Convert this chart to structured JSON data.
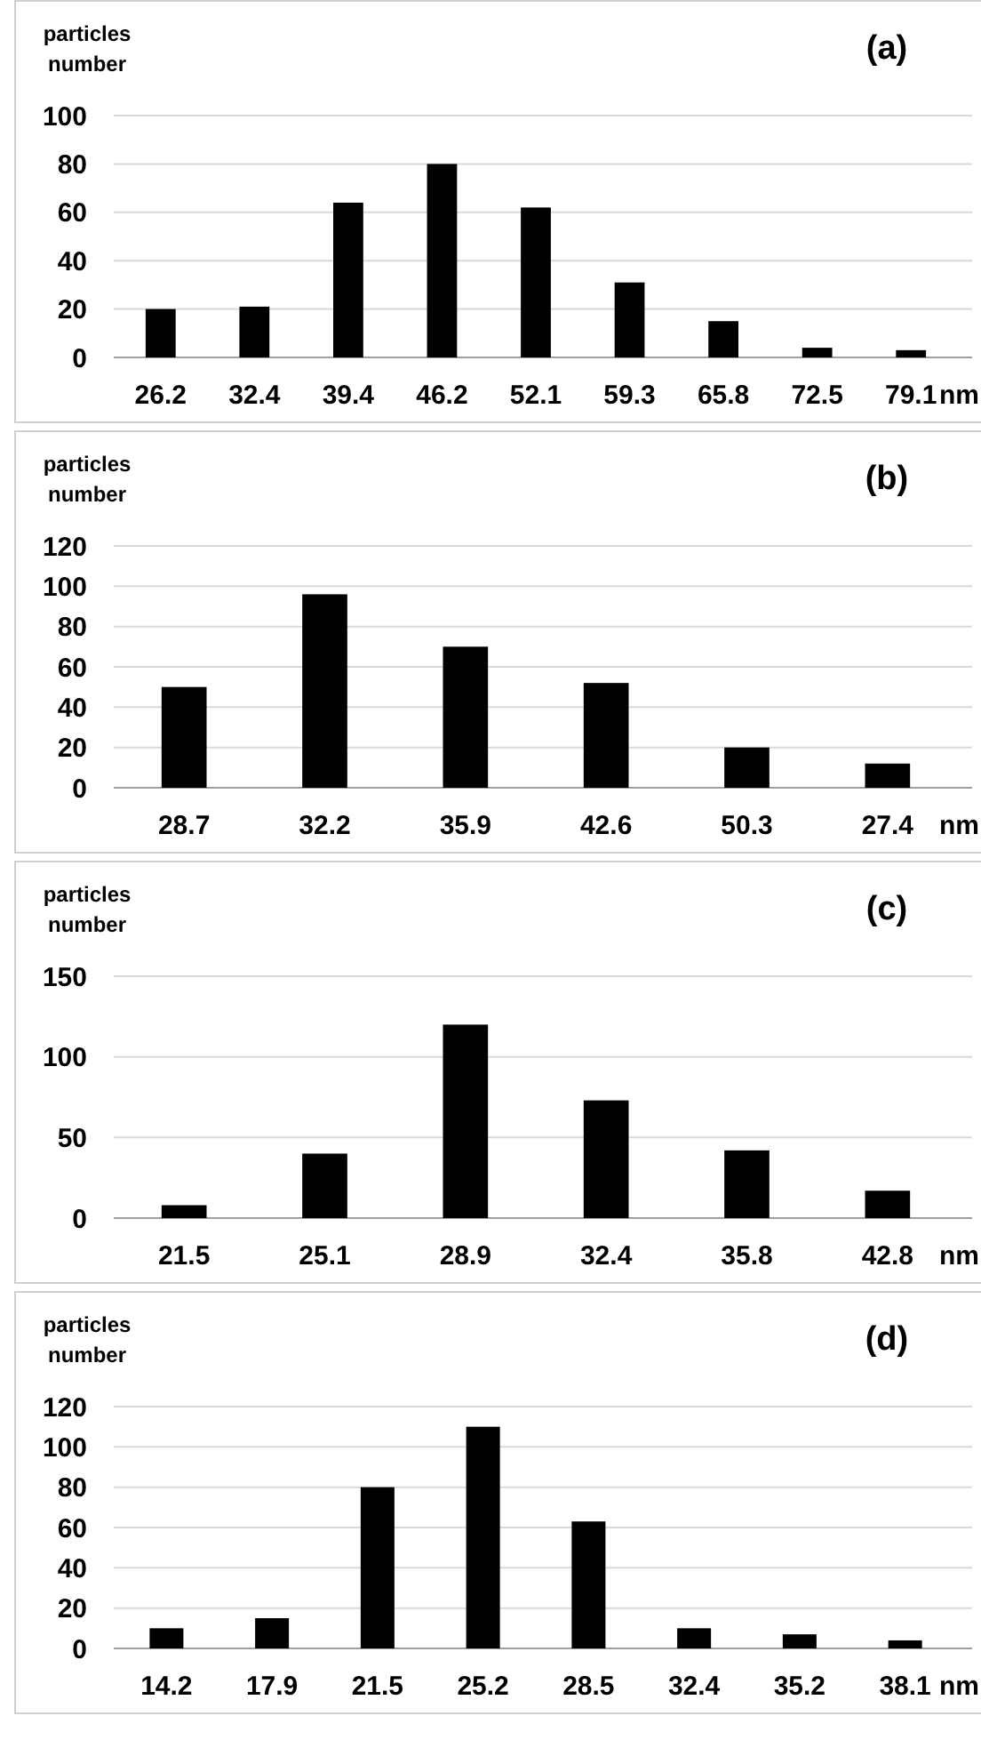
{
  "chart_data": [
    {
      "type": "bar",
      "title": "(a)",
      "ylabel": "particles\nnumber",
      "xlabel": "nm",
      "categories": [
        "26.2",
        "32.4",
        "39.4",
        "46.2",
        "52.1",
        "59.3",
        "65.8",
        "72.5",
        "79.1"
      ],
      "values": [
        20,
        21,
        64,
        80,
        62,
        31,
        15,
        4,
        3
      ],
      "color": "#000000",
      "ylim": [
        0,
        100
      ],
      "yticks": [
        0,
        20,
        40,
        60,
        80,
        100
      ],
      "grid": "y"
    },
    {
      "type": "bar",
      "title": "(b)",
      "ylabel": "particles\nnumber",
      "xlabel": "nm",
      "categories": [
        "28.7",
        "32.2",
        "35.9",
        "42.6",
        "50.3",
        "27.4"
      ],
      "values": [
        50,
        96,
        70,
        52,
        20,
        12
      ],
      "color": "#000000",
      "ylim": [
        0,
        120
      ],
      "yticks": [
        0,
        20,
        40,
        60,
        80,
        100,
        120
      ],
      "grid": "y"
    },
    {
      "type": "bar",
      "title": "(c)",
      "ylabel": "particles\nnumber",
      "xlabel": "nm",
      "categories": [
        "21.5",
        "25.1",
        "28.9",
        "32.4",
        "35.8",
        "42.8"
      ],
      "values": [
        8,
        40,
        120,
        73,
        42,
        17
      ],
      "color": "#000000",
      "ylim": [
        0,
        150
      ],
      "yticks": [
        0,
        50,
        100,
        150
      ],
      "grid": "y"
    },
    {
      "type": "bar",
      "title": "(d)",
      "ylabel": "particles\nnumber",
      "xlabel": "nm",
      "categories": [
        "14.2",
        "17.9",
        "21.5",
        "25.2",
        "28.5",
        "32.4",
        "35.2",
        "38.1"
      ],
      "values": [
        10,
        15,
        80,
        110,
        63,
        10,
        7,
        4
      ],
      "color": "#000000",
      "ylim": [
        0,
        120
      ],
      "yticks": [
        0,
        20,
        40,
        60,
        80,
        100,
        120
      ],
      "grid": "y"
    }
  ]
}
